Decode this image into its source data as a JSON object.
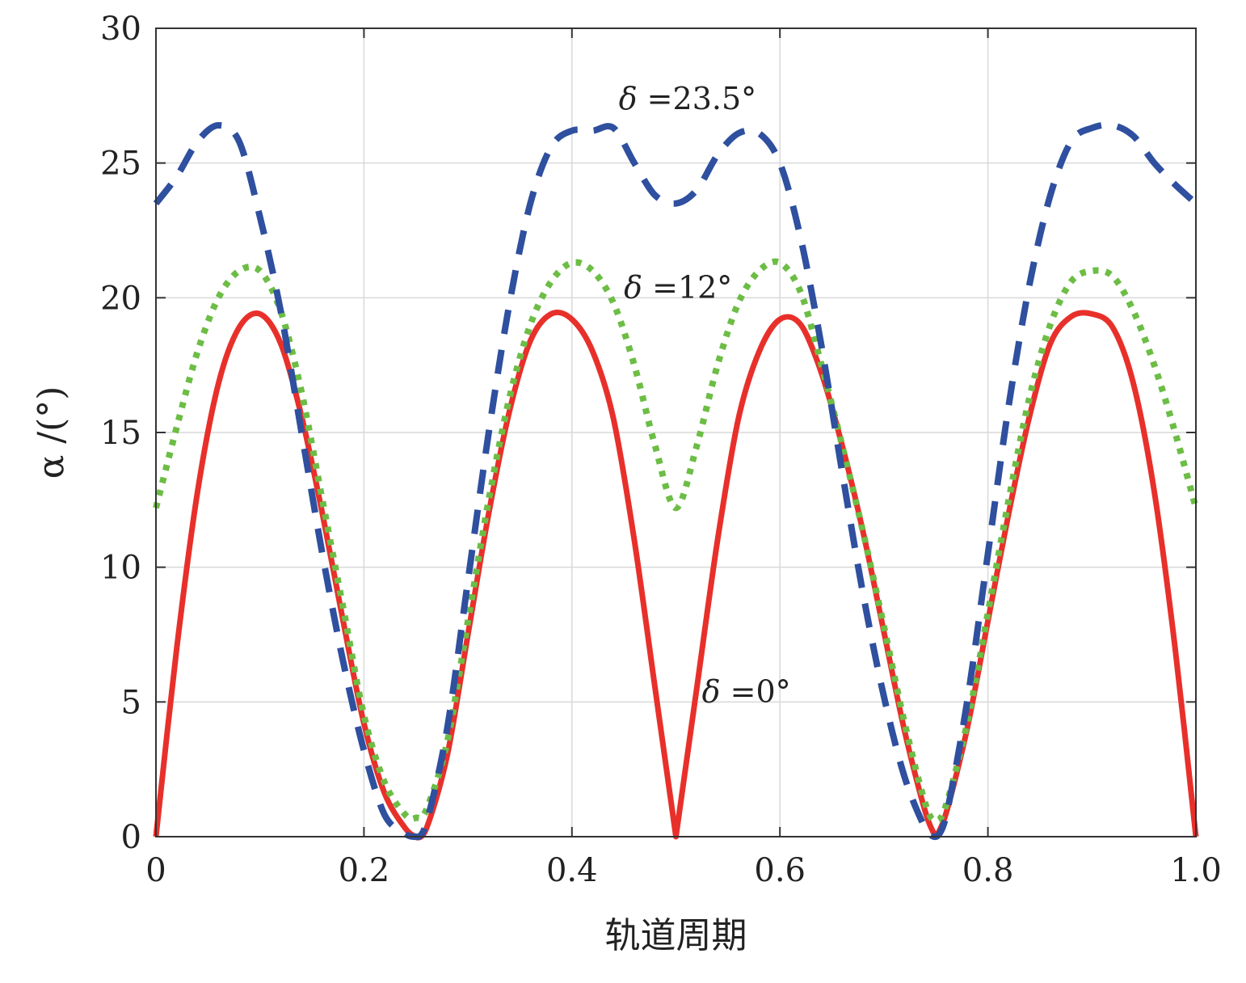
{
  "chart_data": {
    "type": "line",
    "xlabel": "轨道周期",
    "ylabel": "α /(°)",
    "xlim": [
      0,
      1.0
    ],
    "ylim": [
      0,
      30
    ],
    "xticks": [
      "0",
      "0.2",
      "0.4",
      "0.6",
      "0.8",
      "1.0"
    ],
    "yticks": [
      "0",
      "5",
      "10",
      "15",
      "20",
      "25",
      "30"
    ],
    "grid": true,
    "legend": "none",
    "series": [
      {
        "name": "δ =0°",
        "color": "#e8302b",
        "style": "solid",
        "x": [
          0,
          0.02,
          0.04,
          0.06,
          0.08,
          0.1,
          0.12,
          0.14,
          0.16,
          0.18,
          0.2,
          0.22,
          0.24,
          0.25,
          0.26,
          0.28,
          0.3,
          0.32,
          0.34,
          0.36,
          0.38,
          0.4,
          0.42,
          0.44,
          0.46,
          0.48,
          0.5,
          0.52,
          0.54,
          0.56,
          0.58,
          0.6,
          0.62,
          0.64,
          0.66,
          0.68,
          0.7,
          0.72,
          0.74,
          0.75,
          0.76,
          0.78,
          0.8,
          0.82,
          0.84,
          0.86,
          0.88,
          0.9,
          0.92,
          0.94,
          0.96,
          0.98,
          1.0
        ],
        "y": [
          0,
          7.0,
          12.8,
          16.8,
          18.9,
          19.4,
          18.3,
          15.6,
          12.0,
          8.0,
          4.2,
          1.6,
          0.3,
          0,
          0.3,
          3.0,
          7.5,
          12.0,
          15.8,
          18.4,
          19.4,
          19.2,
          18.0,
          15.5,
          11.0,
          5.5,
          0,
          5.5,
          11.0,
          15.5,
          18.0,
          19.2,
          19.0,
          17.2,
          14.5,
          11.3,
          7.6,
          3.9,
          0.9,
          0,
          0.9,
          4.0,
          8.0,
          12.0,
          15.6,
          18.3,
          19.3,
          19.4,
          18.9,
          16.8,
          12.8,
          7.0,
          0
        ]
      },
      {
        "name": "δ =12°",
        "color": "#6cbd45",
        "style": "dotted",
        "x": [
          0,
          0.02,
          0.04,
          0.06,
          0.08,
          0.1,
          0.12,
          0.14,
          0.16,
          0.18,
          0.2,
          0.22,
          0.24,
          0.25,
          0.26,
          0.28,
          0.3,
          0.32,
          0.34,
          0.36,
          0.38,
          0.4,
          0.42,
          0.44,
          0.46,
          0.48,
          0.5,
          0.52,
          0.54,
          0.56,
          0.58,
          0.6,
          0.62,
          0.64,
          0.66,
          0.68,
          0.7,
          0.72,
          0.74,
          0.75,
          0.76,
          0.78,
          0.8,
          0.82,
          0.84,
          0.86,
          0.88,
          0.9,
          0.92,
          0.94,
          0.96,
          0.98,
          1.0
        ],
        "y": [
          12.2,
          15.2,
          18.0,
          20.0,
          21.0,
          21.0,
          19.5,
          16.5,
          12.5,
          8.5,
          4.5,
          2.0,
          0.8,
          0.7,
          1.0,
          3.5,
          8.0,
          12.5,
          16.3,
          19.0,
          20.6,
          21.3,
          21.0,
          19.8,
          17.5,
          14.5,
          12.2,
          14.5,
          17.5,
          19.8,
          21.0,
          21.3,
          20.2,
          17.5,
          14.5,
          11.3,
          7.8,
          4.2,
          1.2,
          0.6,
          1.2,
          4.2,
          8.3,
          12.5,
          16.3,
          19.0,
          20.6,
          21.0,
          20.8,
          19.5,
          17.5,
          15.0,
          12.2
        ]
      },
      {
        "name": "δ =23.5°",
        "color": "#2f4f9f",
        "style": "dashed",
        "x": [
          0,
          0.02,
          0.04,
          0.06,
          0.08,
          0.1,
          0.12,
          0.14,
          0.16,
          0.18,
          0.2,
          0.22,
          0.24,
          0.25,
          0.26,
          0.28,
          0.3,
          0.32,
          0.34,
          0.36,
          0.38,
          0.4,
          0.42,
          0.44,
          0.46,
          0.48,
          0.5,
          0.52,
          0.54,
          0.56,
          0.58,
          0.6,
          0.62,
          0.64,
          0.66,
          0.68,
          0.7,
          0.72,
          0.74,
          0.75,
          0.76,
          0.78,
          0.8,
          0.82,
          0.84,
          0.86,
          0.88,
          0.9,
          0.92,
          0.94,
          0.96,
          0.98,
          1.0
        ],
        "y": [
          23.5,
          24.5,
          25.8,
          26.4,
          25.8,
          23.0,
          19.5,
          15.0,
          10.5,
          6.5,
          3.2,
          0.8,
          0.1,
          0,
          0.5,
          4.0,
          9.5,
          15.0,
          19.8,
          23.5,
          25.6,
          26.2,
          26.2,
          26.3,
          25.0,
          23.8,
          23.5,
          24.0,
          25.3,
          26.1,
          26.1,
          25.0,
          22.2,
          18.2,
          13.5,
          9.0,
          5.2,
          2.2,
          0.3,
          0,
          0.8,
          5.0,
          10.5,
          16.0,
          20.5,
          23.8,
          25.8,
          26.3,
          26.4,
          26.0,
          25.0,
          24.2,
          23.5
        ]
      }
    ],
    "annotations": [
      {
        "symbol": "δ",
        "text": " =23.5°",
        "x": 0.445,
        "y": 27.0
      },
      {
        "symbol": "δ",
        "text": " =12°",
        "x": 0.45,
        "y": 20.0
      },
      {
        "symbol": "δ",
        "text": " =0°",
        "x": 0.525,
        "y": 5.0
      }
    ]
  }
}
